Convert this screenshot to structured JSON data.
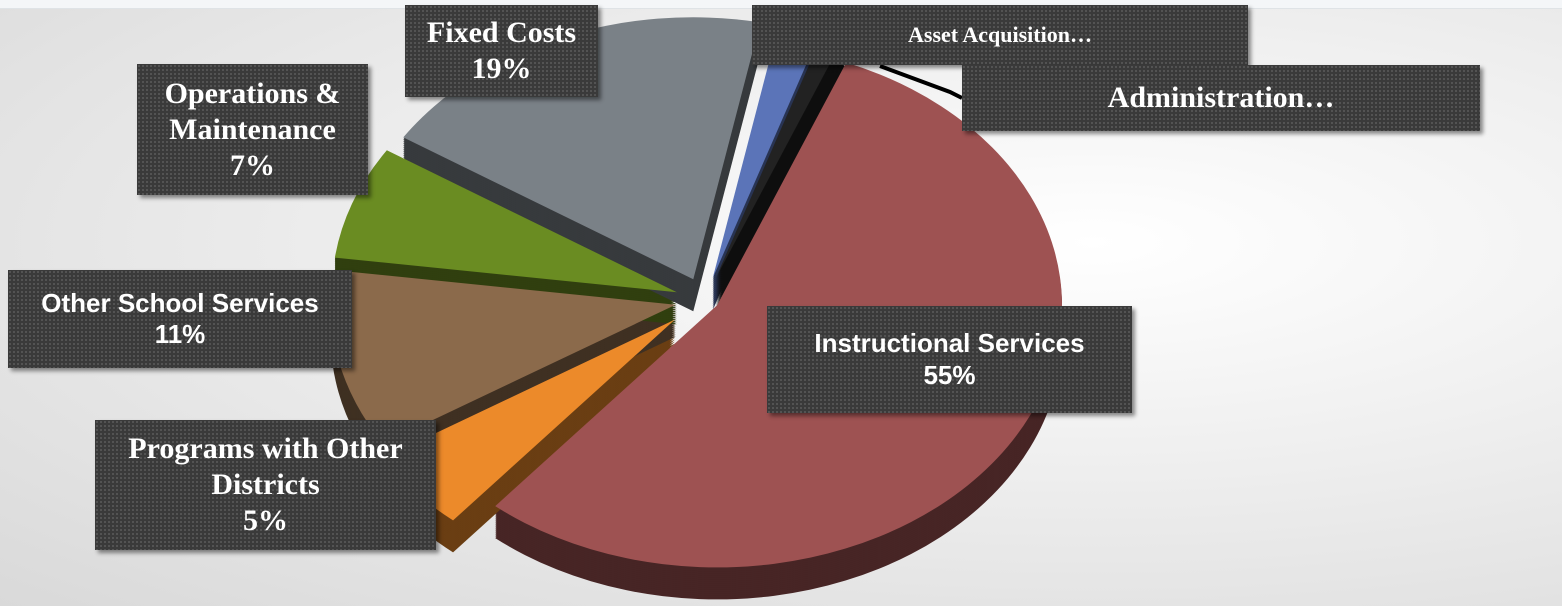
{
  "chart_data": {
    "type": "pie",
    "categories": [
      "Instructional Services",
      "Programs with Other Districts",
      "Other School Services",
      "Operations & Maintenance",
      "Fixed Costs",
      "Asset Acquisition…",
      "Administration…"
    ],
    "values": [
      55,
      5,
      11,
      7,
      19,
      2,
      1
    ],
    "value_labels": [
      "55%",
      "5%",
      "11%",
      "7%",
      "19%",
      null,
      null
    ],
    "colors": [
      "#9e5252",
      "#ec8a2a",
      "#8b6a4b",
      "#6a8c22",
      "#7a8187",
      "#5b74b8",
      "#222222"
    ]
  }
}
